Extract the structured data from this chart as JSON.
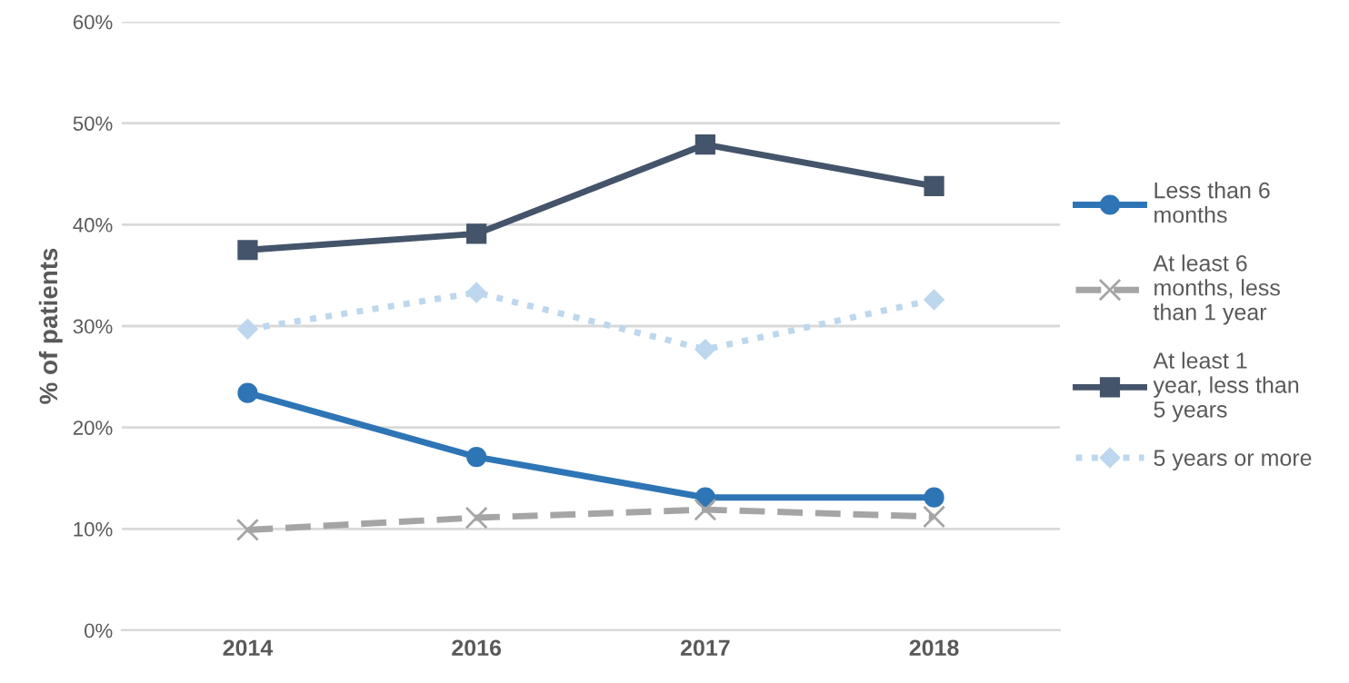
{
  "chart_data": {
    "type": "line",
    "ylabel": "% of patients",
    "categories": [
      "2014",
      "2016",
      "2017",
      "2018"
    ],
    "series": [
      {
        "name": "Less than 6 months",
        "color": "#2e75b6",
        "marker": "circle",
        "line_style": "solid",
        "values": [
          23.4,
          17.1,
          13.1,
          13.1
        ]
      },
      {
        "name": "At least 6 months, less than 1 year",
        "color": "#a5a5a5",
        "marker": "cross",
        "line_style": "dashed",
        "values": [
          9.9,
          11.1,
          11.9,
          11.2
        ]
      },
      {
        "name": "At least 1 year, less than 5 years",
        "color": "#44546a",
        "marker": "square",
        "line_style": "solid",
        "values": [
          37.5,
          39.1,
          47.9,
          43.8
        ]
      },
      {
        "name": "5 years or more",
        "color": "#bdd7ee",
        "marker": "diamond",
        "line_style": "dotted",
        "values": [
          29.7,
          33.3,
          27.7,
          32.6
        ]
      }
    ],
    "ylim": [
      0,
      60
    ],
    "yticks": [
      {
        "value": 0,
        "label": "0%"
      },
      {
        "value": 10,
        "label": "10%"
      },
      {
        "value": 20,
        "label": "20%"
      },
      {
        "value": 30,
        "label": "30%"
      },
      {
        "value": 40,
        "label": "40%"
      },
      {
        "value": 50,
        "label": "50%"
      },
      {
        "value": 60,
        "label": "60%"
      }
    ],
    "grid": "y",
    "legend": "right"
  }
}
